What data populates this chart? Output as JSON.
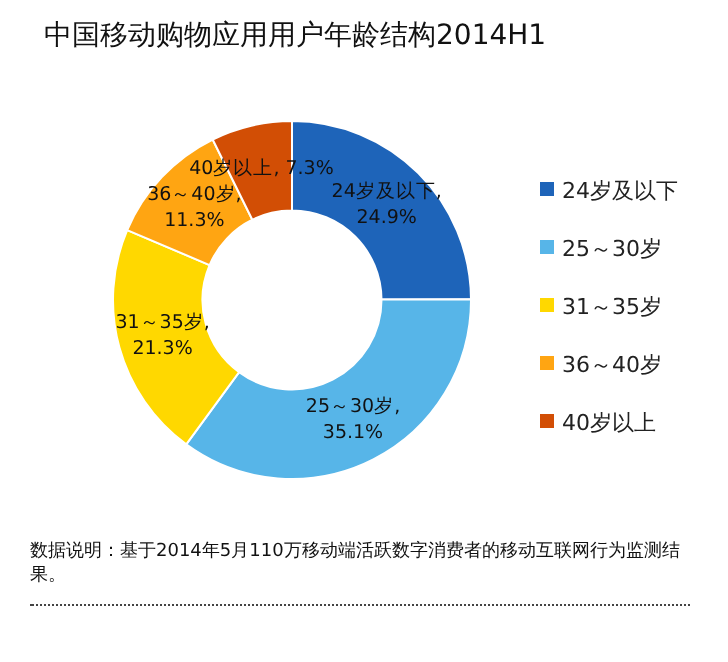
{
  "chart_data": {
    "type": "donut",
    "title": "中国移动购物应用用户年龄结构2014H1",
    "categories": [
      "24岁及以下",
      "25～30岁",
      "31～35岁",
      "36～40岁",
      "40岁以上"
    ],
    "values": [
      24.9,
      35.1,
      21.3,
      11.3,
      7.3
    ],
    "value_labels": [
      "24岁及以下,\n24.9%",
      "25～30岁,\n35.1%",
      "31～35岁,\n21.3%",
      "36～40岁,\n11.3%",
      "40岁以上, 7.3%"
    ],
    "colors": [
      "#1e64b9",
      "#57b5e8",
      "#ffd800",
      "#ffa512",
      "#d24e05"
    ],
    "legend": "right",
    "annotations": [
      "数据说明：基于2014年5月110万移动端活跃数字消费者的移动互联网行为监测结果。"
    ]
  }
}
